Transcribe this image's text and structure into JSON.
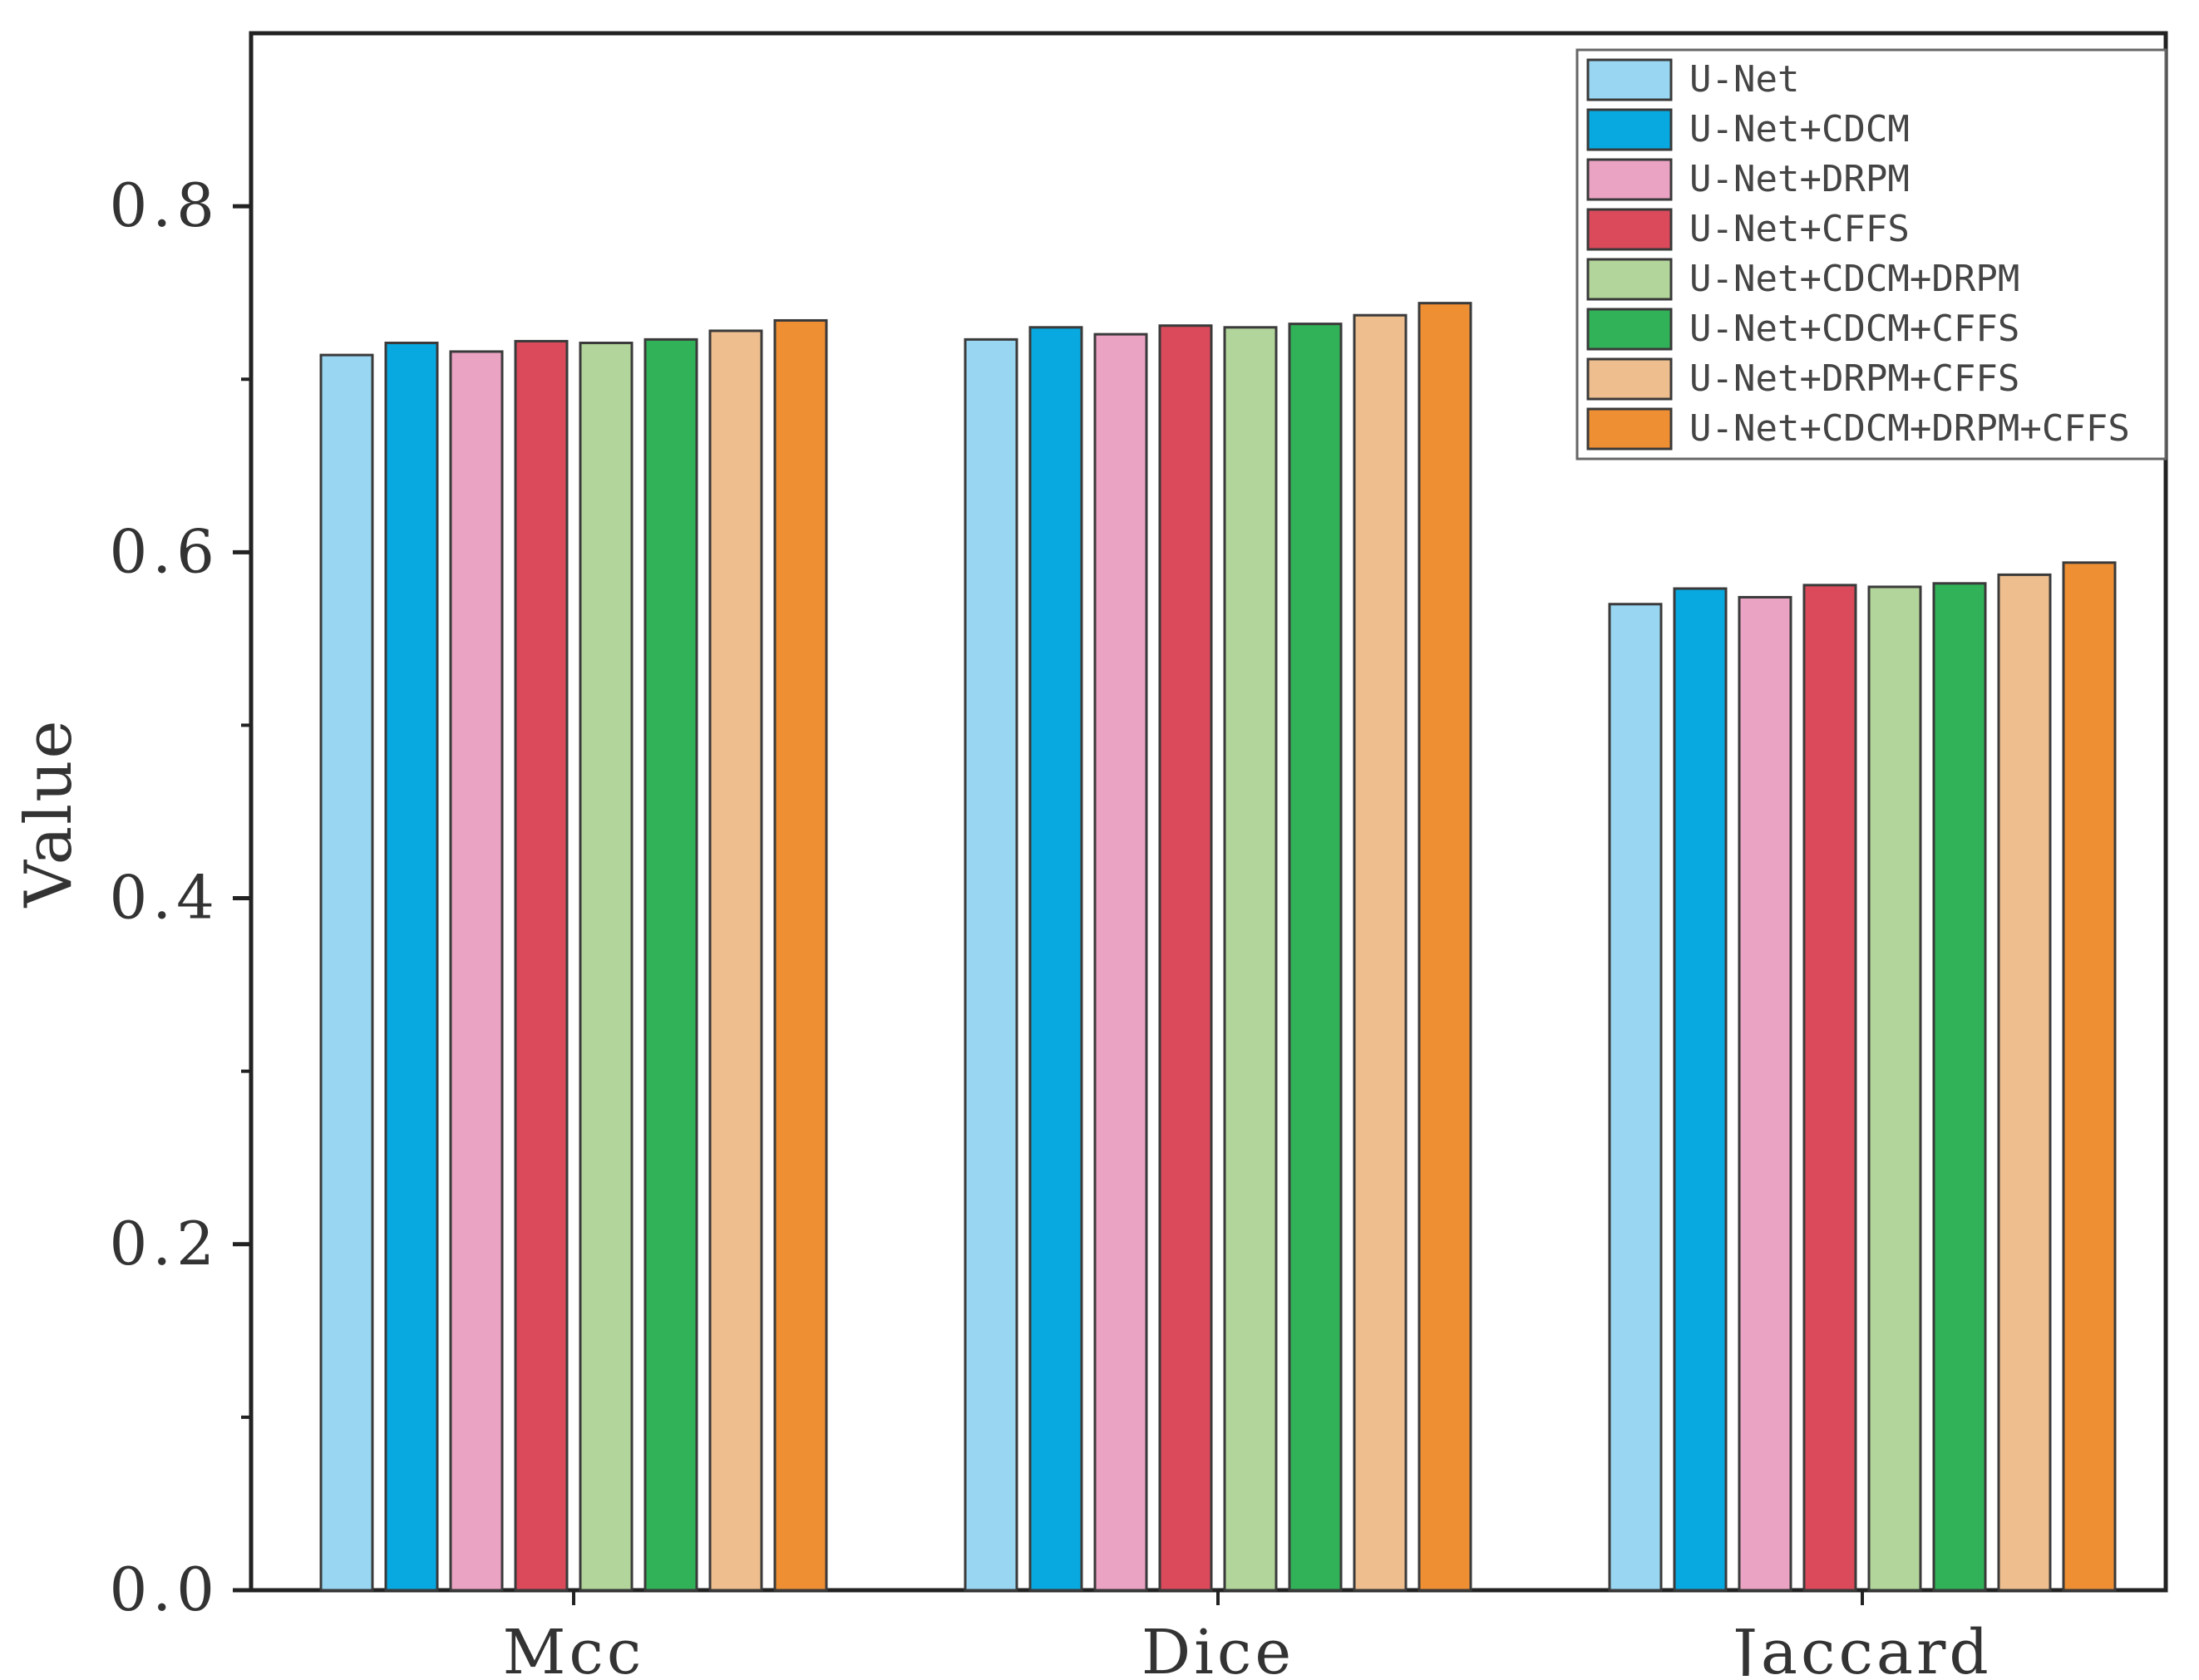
{
  "chart_data": {
    "type": "bar",
    "title": "",
    "xlabel": "",
    "ylabel": "Value",
    "ylim": [
      0,
      0.9
    ],
    "yticks": [
      0.0,
      0.2,
      0.4,
      0.6,
      0.8
    ],
    "ytick_labels": [
      "0.0",
      "0.2",
      "0.4",
      "0.6",
      "0.8"
    ],
    "minor_ticks": true,
    "grid": false,
    "legend_position": "top-right",
    "categories": [
      "Mcc",
      "Dice",
      "Jaccard"
    ],
    "series": [
      {
        "name": "U-Net",
        "color": "#99D6F2",
        "values": [
          0.714,
          0.723,
          0.57
        ]
      },
      {
        "name": "U-Net+CDCM",
        "color": "#08A9E0",
        "values": [
          0.721,
          0.73,
          0.579
        ]
      },
      {
        "name": "U-Net+DRPM",
        "color": "#EAA3C3",
        "values": [
          0.716,
          0.726,
          0.574
        ]
      },
      {
        "name": "U-Net+CFFS",
        "color": "#DA4A5A",
        "values": [
          0.722,
          0.731,
          0.581
        ]
      },
      {
        "name": "U-Net+CDCM+DRPM",
        "color": "#B2D59B",
        "values": [
          0.721,
          0.73,
          0.58
        ]
      },
      {
        "name": "U-Net+CDCM+CFFS",
        "color": "#31B258",
        "values": [
          0.723,
          0.732,
          0.582
        ]
      },
      {
        "name": "U-Net+DRPM+CFFS",
        "color": "#EEBE8E",
        "values": [
          0.728,
          0.737,
          0.587
        ]
      },
      {
        "name": "U-Net+CDCM+DRPM+CFFS",
        "color": "#EF8F34",
        "values": [
          0.734,
          0.744,
          0.594
        ]
      }
    ]
  }
}
